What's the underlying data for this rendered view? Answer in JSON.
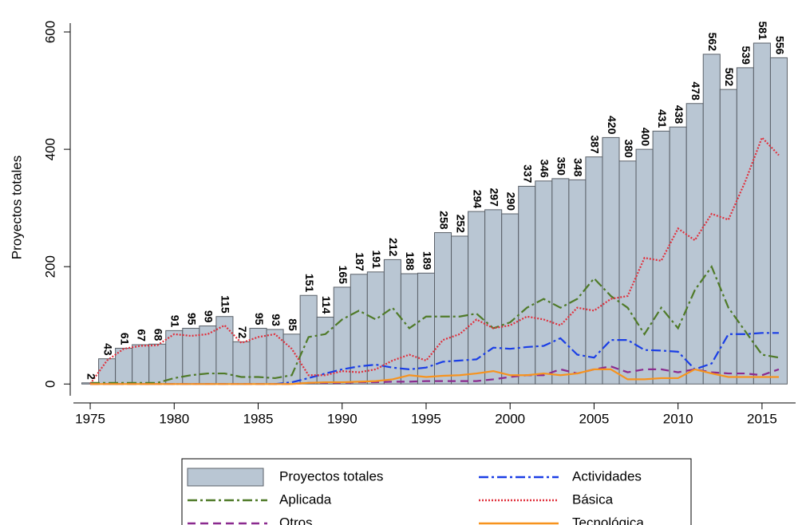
{
  "chart_data": {
    "type": "bar",
    "y_label": "Proyectos totales",
    "x": [
      1975,
      1976,
      1977,
      1978,
      1979,
      1980,
      1981,
      1982,
      1983,
      1984,
      1985,
      1986,
      1987,
      1988,
      1989,
      1990,
      1991,
      1992,
      1993,
      1994,
      1995,
      1996,
      1997,
      1998,
      1999,
      2000,
      2001,
      2002,
      2003,
      2004,
      2005,
      2006,
      2007,
      2008,
      2009,
      2010,
      2011,
      2012,
      2013,
      2014,
      2015,
      2016
    ],
    "xlim": [
      1974,
      2017
    ],
    "xticks": [
      1975,
      1980,
      1985,
      1990,
      1995,
      2000,
      2005,
      2010,
      2015
    ],
    "ylim": [
      -20,
      615
    ],
    "yticks": [
      0,
      200,
      400,
      600
    ],
    "series": [
      {
        "name": "Proyectos totales",
        "type": "bar",
        "color": "#b9c6d3",
        "show_value_labels": true,
        "values": [
          2,
          43,
          61,
          67,
          68,
          91,
          95,
          99,
          115,
          72,
          95,
          93,
          85,
          151,
          114,
          165,
          187,
          191,
          212,
          188,
          189,
          258,
          252,
          294,
          297,
          290,
          337,
          346,
          350,
          348,
          387,
          420,
          380,
          400,
          431,
          438,
          478,
          562,
          502,
          539,
          581,
          556
        ]
      },
      {
        "name": "Actividades",
        "type": "line",
        "color": "#1a3ee6",
        "style": "dashdot",
        "values": [
          0,
          0,
          0,
          0,
          0,
          0,
          0,
          0,
          0,
          0,
          0,
          0,
          3,
          10,
          18,
          25,
          30,
          33,
          28,
          25,
          28,
          38,
          40,
          42,
          62,
          60,
          63,
          65,
          78,
          50,
          45,
          75,
          75,
          58,
          57,
          55,
          25,
          35,
          85,
          85,
          87,
          87
        ]
      },
      {
        "name": "Aplicada",
        "type": "line",
        "color": "#4f7a28",
        "style": "dashdot",
        "values": [
          2,
          2,
          2,
          2,
          2,
          10,
          15,
          18,
          18,
          12,
          12,
          10,
          15,
          80,
          85,
          110,
          125,
          110,
          130,
          95,
          115,
          115,
          115,
          120,
          95,
          105,
          130,
          145,
          130,
          145,
          180,
          150,
          130,
          85,
          130,
          95,
          160,
          200,
          130,
          90,
          50,
          45
        ]
      },
      {
        "name": "Básica",
        "type": "line",
        "color": "#e0303c",
        "style": "dotted",
        "values": [
          0,
          40,
          60,
          65,
          66,
          85,
          82,
          85,
          100,
          70,
          80,
          85,
          60,
          15,
          15,
          22,
          20,
          25,
          40,
          50,
          40,
          75,
          85,
          110,
          95,
          100,
          115,
          110,
          100,
          130,
          125,
          145,
          150,
          215,
          210,
          265,
          245,
          290,
          280,
          345,
          420,
          390
        ]
      },
      {
        "name": "Otros",
        "type": "line",
        "color": "#8b2a8f",
        "style": "dashed",
        "values": [
          0,
          0,
          0,
          0,
          0,
          0,
          0,
          0,
          0,
          0,
          0,
          0,
          0,
          2,
          2,
          2,
          3,
          3,
          4,
          4,
          5,
          5,
          5,
          5,
          8,
          12,
          15,
          15,
          25,
          18,
          25,
          30,
          20,
          25,
          25,
          20,
          25,
          20,
          18,
          18,
          15,
          25
        ]
      },
      {
        "name": "Tecnológica",
        "type": "line",
        "color": "#f7931e",
        "style": "solid",
        "values": [
          0,
          0,
          0,
          0,
          0,
          0,
          0,
          0,
          0,
          0,
          0,
          0,
          0,
          2,
          3,
          3,
          4,
          5,
          8,
          15,
          12,
          14,
          15,
          18,
          22,
          15,
          15,
          18,
          15,
          18,
          25,
          25,
          8,
          8,
          10,
          10,
          25,
          18,
          12,
          12,
          12,
          12
        ]
      }
    ]
  }
}
